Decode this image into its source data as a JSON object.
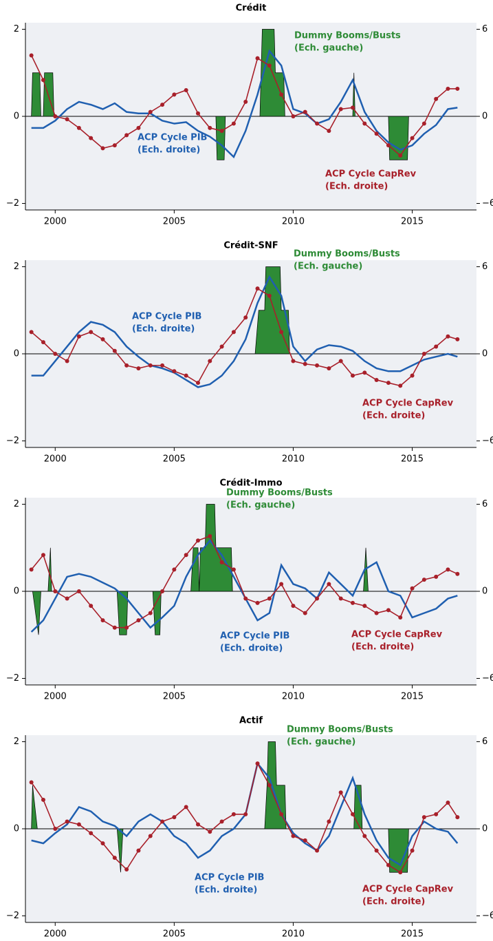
{
  "chart_data": [
    {
      "type": "line",
      "title": "Crédit",
      "x": [
        1999,
        1999.5,
        2000,
        2000.5,
        2001,
        2001.5,
        2002,
        2002.5,
        2003,
        2003.5,
        2004,
        2004.5,
        2005,
        2005.5,
        2006,
        2006.5,
        2007,
        2007.5,
        2008,
        2008.5,
        2009,
        2009.5,
        2010,
        2010.5,
        2011,
        2011.5,
        2012,
        2012.5,
        2013,
        2013.5,
        2014,
        2014.5,
        2015,
        2015.5,
        2016,
        2016.5,
        2016.9
      ],
      "xlim": [
        1998.75,
        2017.7
      ],
      "xticks": [
        2000,
        2005,
        2010,
        2015
      ],
      "ylim": [
        -2.15,
        2.15
      ],
      "yticks": [
        {
          "value": -2,
          "label": "−2"
        },
        0,
        2
      ],
      "y2lim": [
        -6.45,
        6.45
      ],
      "y2ticks": [
        {
          "value": -6,
          "label": "−6"
        },
        0,
        6
      ],
      "series": [
        {
          "lines": [
            "Dummy Booms/Busts",
            "(Ech. gauche)"
          ],
          "color": "#2e8b36",
          "type": "area",
          "axis": "y",
          "x": [
            1999,
            1999.05,
            1999.35,
            1999.4,
            1999.5,
            1999.55,
            1999.9,
            1999.95,
            2006.75,
            2006.8,
            2007.1,
            2007.15,
            2008.6,
            2008.7,
            2009.2,
            2009.25,
            2009.6,
            2009.65,
            2012.5,
            2012.55,
            2012.6,
            2014,
            2014.05,
            2014.8,
            2014.85
          ],
          "values": [
            0,
            1,
            1,
            0,
            0,
            1,
            1,
            0,
            0,
            -1,
            -1,
            0,
            0,
            2,
            2,
            1,
            1,
            0,
            0,
            1,
            0,
            0,
            -1,
            -1,
            0
          ]
        },
        {
          "lines": [
            "ACP Cycle PIB",
            "(Ech. droite)"
          ],
          "color": "#1f5fb0",
          "type": "line",
          "axis": "y2",
          "values": [
            -0.8,
            -0.8,
            -0.3,
            0.5,
            1.0,
            0.8,
            0.5,
            0.9,
            0.3,
            0.2,
            0.2,
            -0.3,
            -0.5,
            -0.4,
            -1.0,
            -1.4,
            -2.0,
            -2.8,
            -1.0,
            1.5,
            4.5,
            3.5,
            0.5,
            0.2,
            -0.5,
            -0.2,
            1.0,
            2.5,
            0.3,
            -1.0,
            -1.8,
            -2.3,
            -2.0,
            -1.2,
            -0.6,
            0.5,
            0.6
          ]
        },
        {
          "lines": [
            "ACP Cycle CapRev",
            "(Ech. droite)"
          ],
          "color": "#a8202a",
          "type": "markers",
          "axis": "y2",
          "values": [
            4.2,
            2.5,
            0,
            -0.2,
            -0.8,
            -1.5,
            -2.2,
            -2.0,
            -1.3,
            -0.8,
            0.3,
            0.8,
            1.5,
            1.8,
            0.2,
            -0.8,
            -1.0,
            -0.5,
            1.0,
            4.0,
            3.5,
            1.5,
            0.0,
            0.3,
            -0.5,
            -1.0,
            0.5,
            0.6,
            -0.5,
            -1.2,
            -2.0,
            -2.7,
            -1.5,
            -0.5,
            1.2,
            1.9,
            1.9
          ]
        }
      ]
    },
    {
      "type": "line",
      "title": "Crédit-SNF",
      "x": [
        1999,
        1999.5,
        2000,
        2000.5,
        2001,
        2001.5,
        2002,
        2002.5,
        2003,
        2003.5,
        2004,
        2004.5,
        2005,
        2005.5,
        2006,
        2006.5,
        2007,
        2007.5,
        2008,
        2008.5,
        2009,
        2009.5,
        2010,
        2010.5,
        2011,
        2011.5,
        2012,
        2012.5,
        2013,
        2013.5,
        2014,
        2014.5,
        2015,
        2015.5,
        2016,
        2016.5,
        2016.9
      ],
      "xlim": [
        1998.75,
        2017.7
      ],
      "xticks": [
        2000,
        2005,
        2010,
        2015
      ],
      "ylim": [
        -2.15,
        2.15
      ],
      "yticks": [
        {
          "value": -2,
          "label": "−2"
        },
        0,
        2
      ],
      "y2lim": [
        -6.45,
        6.45
      ],
      "y2ticks": [
        {
          "value": -6,
          "label": "−6"
        },
        0,
        6
      ],
      "series": [
        {
          "lines": [
            "Dummy Booms/Busts",
            "(Ech. gauche)"
          ],
          "color": "#2e8b36",
          "type": "area",
          "axis": "y",
          "x": [
            2008.4,
            2008.55,
            2008.8,
            2008.85,
            2009.45,
            2009.5,
            2009.8,
            2009.85
          ],
          "values": [
            0,
            1,
            1,
            2,
            2,
            1,
            1,
            0
          ]
        },
        {
          "lines": [
            "ACP Cycle PIB",
            "(Ech. droite)"
          ],
          "color": "#1f5fb0",
          "type": "line",
          "axis": "y2",
          "values": [
            -1.5,
            -1.5,
            -0.5,
            0.5,
            1.5,
            2.2,
            2.0,
            1.5,
            0.5,
            -0.2,
            -0.8,
            -1.0,
            -1.3,
            -1.8,
            -2.3,
            -2.1,
            -1.5,
            -0.5,
            1.0,
            3.5,
            5.3,
            4.0,
            0.5,
            -0.5,
            0.3,
            0.6,
            0.5,
            0.2,
            -0.5,
            -1.0,
            -1.2,
            -1.2,
            -0.8,
            -0.4,
            -0.2,
            0.0,
            -0.2
          ]
        },
        {
          "lines": [
            "ACP Cycle CapRev",
            "(Ech. droite)"
          ],
          "color": "#a8202a",
          "type": "markers",
          "axis": "y2",
          "values": [
            1.5,
            0.8,
            0.0,
            -0.5,
            1.2,
            1.5,
            1.0,
            0.2,
            -0.8,
            -1.0,
            -0.8,
            -0.8,
            -1.2,
            -1.5,
            -2.0,
            -0.5,
            0.5,
            1.5,
            2.5,
            4.5,
            4.0,
            1.5,
            -0.5,
            -0.7,
            -0.8,
            -1.0,
            -0.5,
            -1.5,
            -1.3,
            -1.8,
            -2.0,
            -2.2,
            -1.5,
            0.0,
            0.5,
            1.2,
            1.0
          ]
        }
      ]
    },
    {
      "type": "line",
      "title": "Crédit-Immo",
      "x": [
        1999,
        1999.5,
        2000,
        2000.5,
        2001,
        2001.5,
        2002,
        2002.5,
        2003,
        2003.5,
        2004,
        2004.5,
        2005,
        2005.5,
        2006,
        2006.5,
        2007,
        2007.5,
        2008,
        2008.5,
        2009,
        2009.5,
        2010,
        2010.5,
        2011,
        2011.5,
        2012,
        2012.5,
        2013,
        2013.5,
        2014,
        2014.5,
        2015,
        2015.5,
        2016,
        2016.5,
        2016.9
      ],
      "xlim": [
        1998.75,
        2017.7
      ],
      "xticks": [
        2000,
        2005,
        2010,
        2015
      ],
      "ylim": [
        -2.15,
        2.15
      ],
      "yticks": [
        {
          "value": -2,
          "label": "−2"
        },
        0,
        2
      ],
      "y2lim": [
        -6.45,
        6.45
      ],
      "y2ticks": [
        {
          "value": -6,
          "label": "−6"
        },
        0,
        6
      ],
      "series": [
        {
          "lines": [
            "Dummy Booms/Busts",
            "(Ech. gauche)"
          ],
          "color": "#2e8b36",
          "type": "area",
          "axis": "y",
          "x": [
            1999.05,
            1999.3,
            1999.4,
            1999.7,
            1999.8,
            1999.85,
            2002.6,
            2002.7,
            2003.0,
            2003.05,
            2004.1,
            2004.2,
            2004.4,
            2004.45,
            2005.7,
            2005.8,
            2006.0,
            2006.05,
            2006.1,
            2006.3,
            2006.35,
            2006.7,
            2006.75,
            2007.4,
            2007.45,
            2012.95,
            2013.05,
            2013.15
          ],
          "values": [
            0,
            -1,
            0,
            0,
            1,
            0,
            0,
            -1,
            -1,
            0,
            0,
            -1,
            -1,
            0,
            0,
            1,
            1,
            0,
            1,
            1,
            2,
            2,
            1,
            1,
            0,
            0,
            1,
            0
          ]
        },
        {
          "lines": [
            "ACP Cycle PIB",
            "(Ech. droite)"
          ],
          "color": "#1f5fb0",
          "type": "line",
          "axis": "y2",
          "values": [
            -2.8,
            -2.0,
            -0.5,
            1.0,
            1.2,
            1.0,
            0.6,
            0.2,
            -0.5,
            -1.5,
            -2.5,
            -1.8,
            -1.0,
            1.0,
            2.5,
            3.5,
            2.5,
            1.0,
            -0.5,
            -2.0,
            -1.5,
            1.8,
            0.5,
            0.2,
            -0.5,
            1.3,
            0.5,
            -0.3,
            1.5,
            2.0,
            0.0,
            -0.3,
            -1.8,
            -1.5,
            -1.2,
            -0.5,
            -0.3
          ]
        },
        {
          "lines": [
            "ACP Cycle CapRev",
            "(Ech. droite)"
          ],
          "color": "#a8202a",
          "type": "markers",
          "axis": "y2",
          "values": [
            1.5,
            2.5,
            0.0,
            -0.5,
            0.0,
            -1.0,
            -2.0,
            -2.5,
            -2.5,
            -2.0,
            -1.5,
            0.0,
            1.5,
            2.5,
            3.5,
            3.8,
            2.0,
            1.5,
            -0.5,
            -0.8,
            -0.5,
            0.5,
            -1.0,
            -1.5,
            -0.5,
            0.5,
            -0.5,
            -0.8,
            -1.0,
            -1.5,
            -1.3,
            -1.8,
            0.2,
            0.8,
            1.0,
            1.5,
            1.2
          ]
        }
      ]
    },
    {
      "type": "line",
      "title": "Actif",
      "x": [
        1999,
        1999.5,
        2000,
        2000.5,
        2001,
        2001.5,
        2002,
        2002.5,
        2003,
        2003.5,
        2004,
        2004.5,
        2005,
        2005.5,
        2006,
        2006.5,
        2007,
        2007.5,
        2008,
        2008.5,
        2009,
        2009.5,
        2010,
        2010.5,
        2011,
        2011.5,
        2012,
        2012.5,
        2013,
        2013.5,
        2014,
        2014.5,
        2015,
        2015.5,
        2016,
        2016.5,
        2016.9
      ],
      "xlim": [
        1998.75,
        2017.7
      ],
      "xticks": [
        2000,
        2005,
        2010,
        2015
      ],
      "ylim": [
        -2.15,
        2.15
      ],
      "yticks": [
        {
          "value": -2,
          "label": "−2"
        },
        0,
        2
      ],
      "y2lim": [
        -6.45,
        6.45
      ],
      "y2ticks": [
        {
          "value": -6,
          "label": "−6"
        },
        0,
        6
      ],
      "series": [
        {
          "lines": [
            "Dummy Booms/Busts",
            "(Ech. gauche)"
          ],
          "color": "#2e8b36",
          "type": "area",
          "axis": "y",
          "x": [
            1999,
            1999.05,
            1999.25,
            2002.6,
            2002.75,
            2002.85,
            2008.8,
            2008.9,
            2008.95,
            2009.25,
            2009.3,
            2009.65,
            2009.7,
            2012.55,
            2012.6,
            2012.85,
            2012.9,
            2014.0,
            2014.05,
            2014.8,
            2014.85
          ],
          "values": [
            0,
            1,
            0,
            0,
            -1,
            0,
            0,
            1,
            2,
            2,
            1,
            1,
            0,
            0,
            1,
            1,
            0,
            0,
            -1,
            -1,
            0
          ]
        },
        {
          "lines": [
            "ACP Cycle PIB",
            "(Ech. droite)"
          ],
          "color": "#1f5fb0",
          "type": "line",
          "axis": "y2",
          "values": [
            -0.8,
            -1.0,
            -0.3,
            0.3,
            1.5,
            1.2,
            0.5,
            0.2,
            -0.5,
            0.5,
            1.0,
            0.5,
            -0.5,
            -1.0,
            -2.0,
            -1.5,
            -0.5,
            0.0,
            1.0,
            4.5,
            3.5,
            1.0,
            -0.3,
            -1.0,
            -1.5,
            -0.5,
            1.5,
            3.5,
            1.0,
            -0.8,
            -2.0,
            -2.5,
            -0.5,
            0.5,
            0.0,
            -0.2,
            -1.0
          ]
        },
        {
          "lines": [
            "ACP Cycle CapRev",
            "(Ech. droite)"
          ],
          "color": "#a8202a",
          "type": "markers",
          "axis": "y2",
          "values": [
            3.2,
            2.0,
            0.0,
            0.5,
            0.3,
            -0.3,
            -1.0,
            -2.0,
            -2.8,
            -1.5,
            -0.5,
            0.5,
            0.8,
            1.5,
            0.3,
            -0.2,
            0.5,
            1.0,
            1.0,
            4.5,
            3.0,
            1.0,
            -0.5,
            -0.8,
            -1.5,
            0.5,
            2.5,
            1.0,
            -0.5,
            -1.5,
            -2.5,
            -3.0,
            -1.5,
            0.8,
            1.0,
            1.8,
            0.8
          ]
        }
      ]
    }
  ]
}
